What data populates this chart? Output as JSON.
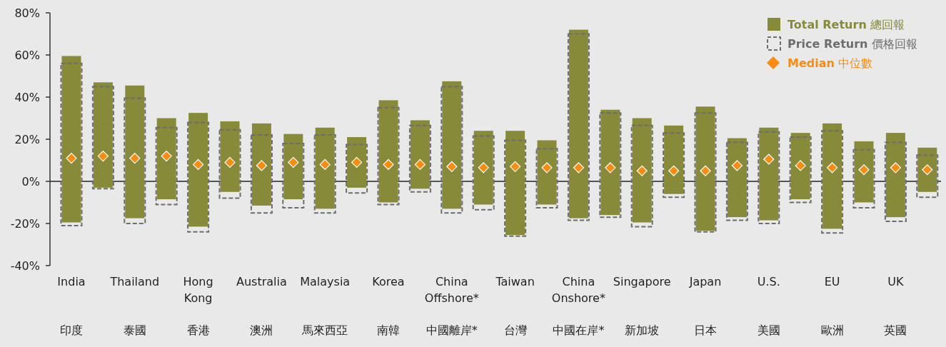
{
  "chart_data": {
    "type": "bar",
    "categories": [
      "India\n印度",
      null,
      "Thailand\n泰國",
      null,
      "Hong Kong\n香港",
      null,
      "Australia\n澳洲",
      null,
      "Malaysia\n馬來西亞",
      null,
      "Korea\n南韓",
      null,
      "China Offshore*\n中國離岸*",
      null,
      "Taiwan\n台灣",
      null,
      "China Onshore*\n中國在岸*",
      null,
      "Singapore\n新加坡",
      null,
      "Japan\n日本",
      null,
      "U.S.\n美國",
      null,
      "EU\n歐洲",
      null,
      "UK\n英國",
      null
    ],
    "series": [
      {
        "name": "**Total Return** 總回報",
        "color": "#878a39",
        "line_style": "solid",
        "base": [
          -19.5,
          -3,
          -17.5,
          -8.5,
          -21.5,
          -5,
          -11.5,
          -8.5,
          -13,
          -3,
          -10,
          -3.5,
          -13,
          -11,
          -25.5,
          -11,
          -17.5,
          -16,
          -19.5,
          -6,
          -23.5,
          -17,
          -18.5,
          -8.5,
          -22.5,
          -10,
          -17,
          -5
        ],
        "values": [
          79,
          50,
          63,
          38.5,
          54,
          33.5,
          39,
          31,
          38.5,
          24,
          48.5,
          32.5,
          60.5,
          35,
          49.5,
          30.5,
          89.5,
          50,
          49.5,
          32.5,
          59,
          37.5,
          44,
          31.5,
          50,
          29,
          40,
          21
        ]
      },
      {
        "name": "**Price Return** 價格回報",
        "color": "#6d6d6d",
        "line_style": "dashed",
        "base": [
          -21,
          -3.5,
          -20,
          -11,
          -24,
          -8,
          -15,
          -12.5,
          -15,
          -5.5,
          -11,
          -5,
          -15,
          -13.5,
          -26,
          -12.5,
          -18.5,
          -17,
          -21.5,
          -7.5,
          -24,
          -18.5,
          -20,
          -10,
          -24.5,
          -12.5,
          -19,
          -7.5
        ],
        "values": [
          77,
          48.5,
          59.5,
          36.5,
          52,
          32.5,
          37,
          30.5,
          37,
          23,
          46,
          31.5,
          60,
          35,
          45.5,
          28,
          88.5,
          49.5,
          48,
          30.5,
          56.5,
          37,
          43.5,
          31,
          48.5,
          27.5,
          37.5,
          20
        ]
      },
      {
        "name": "**Median** 中位數",
        "type": "scatter",
        "marker": "diamond",
        "color": "#f98c10",
        "values": [
          11,
          12,
          11,
          12,
          8,
          9,
          7.5,
          9,
          8,
          9,
          8,
          8,
          7,
          6.5,
          7,
          6.5,
          6.5,
          6.5,
          5,
          5,
          5,
          7.5,
          10.5,
          7.5,
          6.5,
          5.5,
          6.5,
          5.5
        ]
      }
    ],
    "ylim": [
      -40,
      80
    ],
    "yticks": [
      {
        "value": -40,
        "label": "-40%"
      },
      {
        "value": -20,
        "label": "-20%"
      },
      {
        "value": 0,
        "label": "0%"
      },
      {
        "value": 20,
        "label": "20%"
      },
      {
        "value": 40,
        "label": "40%"
      },
      {
        "value": 60,
        "label": "60%"
      },
      {
        "value": 80,
        "label": "80%"
      }
    ],
    "legend": "top right"
  }
}
